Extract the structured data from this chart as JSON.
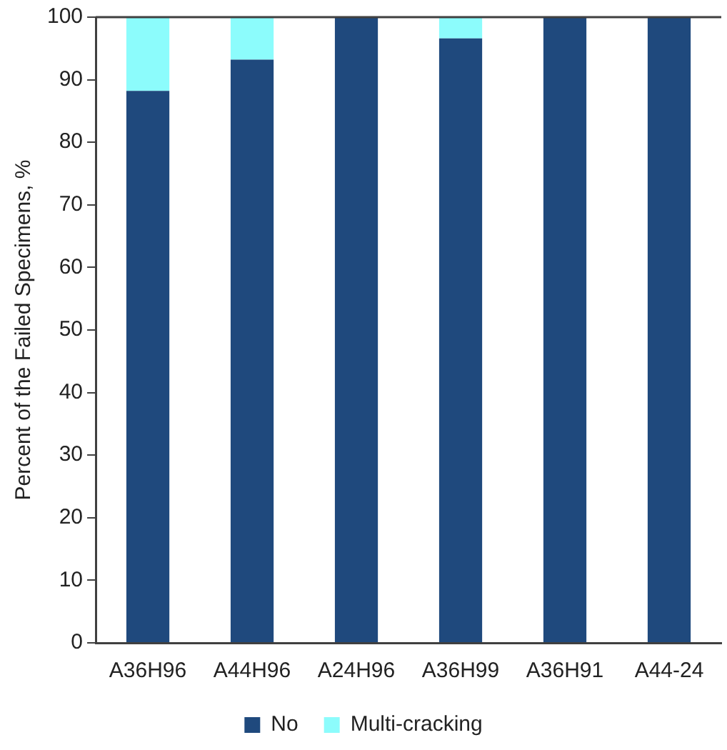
{
  "chart_data": {
    "type": "bar",
    "stacked": true,
    "ylabel": "Percent of the Failed Specimens, %",
    "categories": [
      "A36H96",
      "A44H96",
      "A24H96",
      "A36H99",
      "A36H91",
      "A44-24"
    ],
    "series": [
      {
        "name": "No",
        "color": "#1f497d",
        "values": [
          88.2,
          93.2,
          100,
          96.6,
          100,
          100
        ]
      },
      {
        "name": "Multi-cracking",
        "color": "#8cfcfc",
        "values": [
          11.8,
          6.8,
          0,
          3.4,
          0,
          0
        ]
      }
    ],
    "ylim": [
      0,
      100
    ],
    "yticks": [
      0,
      10,
      20,
      30,
      40,
      50,
      60,
      70,
      80,
      90,
      100
    ],
    "grid": false,
    "legend": "bottom"
  }
}
